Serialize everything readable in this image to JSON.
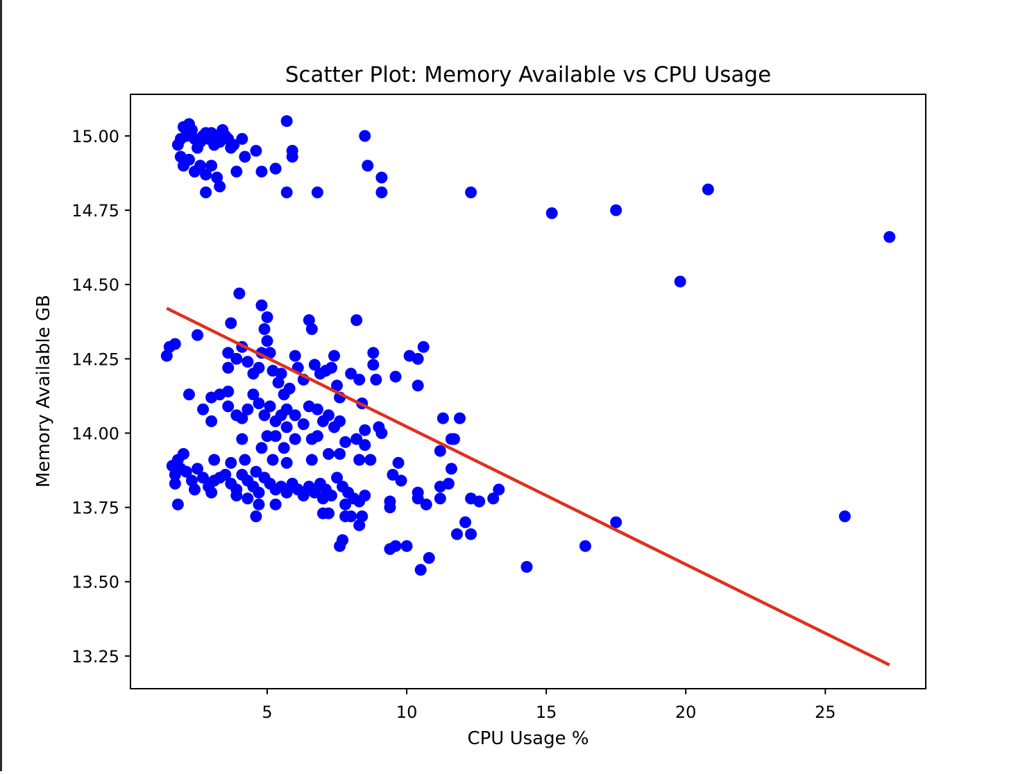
{
  "colors": {
    "points": "#0000ff",
    "trend": "#e0301e",
    "axes": "#000000",
    "background": "#ffffff"
  },
  "chart_data": {
    "type": "scatter",
    "title": "Scatter Plot: Memory Available vs CPU Usage",
    "xlabel": "CPU Usage %",
    "ylabel": "Memory Available GB",
    "xlim": [
      0.1,
      28.6
    ],
    "ylim": [
      13.14,
      15.14
    ],
    "xticks": [
      5,
      10,
      15,
      20,
      25
    ],
    "xtick_labels": [
      "5",
      "10",
      "15",
      "20",
      "25"
    ],
    "yticks": [
      13.25,
      13.5,
      13.75,
      14.0,
      14.25,
      14.5,
      14.75,
      15.0
    ],
    "ytick_labels": [
      "13.25",
      "13.50",
      "13.75",
      "14.00",
      "14.25",
      "14.50",
      "14.75",
      "15.00"
    ],
    "grid": false,
    "legend": "none",
    "trend_line": {
      "x": [
        1.4,
        27.3
      ],
      "y": [
        14.42,
        13.22
      ]
    },
    "points": [
      [
        1.8,
        14.97
      ],
      [
        1.9,
        14.99
      ],
      [
        2.0,
        15.03
      ],
      [
        2.1,
        15.0
      ],
      [
        2.2,
        15.04
      ],
      [
        2.3,
        15.02
      ],
      [
        2.4,
        14.99
      ],
      [
        2.5,
        14.96
      ],
      [
        2.6,
        14.98
      ],
      [
        2.7,
        15.0
      ],
      [
        2.8,
        15.01
      ],
      [
        2.9,
        14.99
      ],
      [
        3.0,
        15.01
      ],
      [
        3.1,
        14.97
      ],
      [
        3.2,
        15.0
      ],
      [
        3.3,
        14.98
      ],
      [
        3.4,
        15.02
      ],
      [
        3.5,
        15.0
      ],
      [
        3.6,
        14.99
      ],
      [
        3.7,
        14.96
      ],
      [
        3.8,
        14.97
      ],
      [
        1.9,
        14.93
      ],
      [
        2.0,
        14.9
      ],
      [
        2.2,
        14.92
      ],
      [
        2.4,
        14.88
      ],
      [
        2.6,
        14.9
      ],
      [
        2.8,
        14.87
      ],
      [
        3.0,
        14.9
      ],
      [
        3.2,
        14.86
      ],
      [
        3.3,
        14.83
      ],
      [
        2.8,
        14.81
      ],
      [
        3.9,
        14.88
      ],
      [
        4.1,
        14.99
      ],
      [
        4.2,
        14.93
      ],
      [
        4.6,
        14.95
      ],
      [
        4.8,
        14.88
      ],
      [
        5.3,
        14.89
      ],
      [
        5.7,
        15.05
      ],
      [
        5.9,
        14.95
      ],
      [
        5.9,
        14.93
      ],
      [
        5.7,
        14.81
      ],
      [
        6.8,
        14.81
      ],
      [
        8.5,
        15.0
      ],
      [
        8.6,
        14.9
      ],
      [
        9.1,
        14.86
      ],
      [
        9.1,
        14.81
      ],
      [
        12.3,
        14.81
      ],
      [
        15.2,
        14.74
      ],
      [
        17.5,
        14.75
      ],
      [
        20.8,
        14.82
      ],
      [
        19.8,
        14.51
      ],
      [
        27.3,
        14.66
      ],
      [
        1.4,
        14.26
      ],
      [
        1.5,
        14.29
      ],
      [
        1.7,
        14.3
      ],
      [
        2.5,
        14.33
      ],
      [
        2.2,
        14.13
      ],
      [
        2.7,
        14.08
      ],
      [
        3.0,
        14.12
      ],
      [
        3.3,
        14.13
      ],
      [
        3.6,
        14.14
      ],
      [
        3.0,
        14.04
      ],
      [
        4.0,
        14.47
      ],
      [
        3.7,
        14.37
      ],
      [
        3.6,
        14.27
      ],
      [
        3.6,
        14.22
      ],
      [
        3.9,
        14.25
      ],
      [
        4.1,
        14.29
      ],
      [
        4.3,
        14.24
      ],
      [
        4.5,
        14.2
      ],
      [
        4.7,
        14.22
      ],
      [
        4.8,
        14.27
      ],
      [
        4.8,
        14.43
      ],
      [
        4.9,
        14.35
      ],
      [
        5.0,
        14.39
      ],
      [
        5.0,
        14.31
      ],
      [
        5.1,
        14.27
      ],
      [
        5.2,
        14.21
      ],
      [
        5.4,
        14.17
      ],
      [
        5.5,
        14.2
      ],
      [
        5.6,
        14.13
      ],
      [
        5.7,
        14.08
      ],
      [
        5.8,
        14.15
      ],
      [
        6.0,
        14.26
      ],
      [
        6.1,
        14.22
      ],
      [
        6.3,
        14.18
      ],
      [
        6.5,
        14.38
      ],
      [
        6.6,
        14.35
      ],
      [
        6.7,
        14.23
      ],
      [
        6.9,
        14.2
      ],
      [
        7.1,
        14.21
      ],
      [
        7.3,
        14.22
      ],
      [
        7.4,
        14.26
      ],
      [
        7.5,
        14.16
      ],
      [
        7.6,
        14.12
      ],
      [
        8.0,
        14.2
      ],
      [
        8.2,
        14.38
      ],
      [
        8.3,
        14.18
      ],
      [
        8.4,
        14.1
      ],
      [
        8.8,
        14.27
      ],
      [
        8.8,
        14.23
      ],
      [
        8.9,
        14.18
      ],
      [
        9.6,
        14.19
      ],
      [
        10.1,
        14.26
      ],
      [
        10.4,
        14.25
      ],
      [
        10.6,
        14.29
      ],
      [
        10.4,
        14.16
      ],
      [
        3.6,
        14.09
      ],
      [
        3.9,
        14.06
      ],
      [
        4.1,
        14.05
      ],
      [
        4.3,
        14.08
      ],
      [
        4.5,
        14.13
      ],
      [
        4.7,
        14.1
      ],
      [
        4.9,
        14.06
      ],
      [
        5.1,
        14.09
      ],
      [
        5.3,
        14.04
      ],
      [
        5.5,
        14.06
      ],
      [
        5.7,
        14.02
      ],
      [
        6.0,
        14.06
      ],
      [
        6.3,
        14.03
      ],
      [
        6.5,
        14.09
      ],
      [
        6.8,
        14.08
      ],
      [
        7.0,
        14.04
      ],
      [
        7.2,
        14.06
      ],
      [
        7.4,
        14.02
      ],
      [
        7.6,
        14.04
      ],
      [
        7.8,
        13.97
      ],
      [
        8.2,
        13.98
      ],
      [
        8.5,
        14.01
      ],
      [
        8.5,
        13.96
      ],
      [
        9.0,
        14.02
      ],
      [
        9.1,
        14.0
      ],
      [
        11.3,
        14.05
      ],
      [
        11.9,
        14.05
      ],
      [
        11.6,
        13.98
      ],
      [
        11.7,
        13.98
      ],
      [
        4.1,
        13.98
      ],
      [
        5.0,
        13.99
      ],
      [
        5.3,
        13.99
      ],
      [
        6.0,
        13.98
      ],
      [
        6.6,
        13.98
      ],
      [
        6.8,
        13.99
      ],
      [
        4.8,
        13.95
      ],
      [
        5.6,
        13.95
      ],
      [
        1.6,
        13.89
      ],
      [
        1.7,
        13.86
      ],
      [
        1.8,
        13.91
      ],
      [
        1.9,
        13.88
      ],
      [
        2.0,
        13.93
      ],
      [
        2.1,
        13.87
      ],
      [
        2.3,
        13.84
      ],
      [
        2.5,
        13.88
      ],
      [
        2.7,
        13.85
      ],
      [
        2.9,
        13.82
      ],
      [
        3.1,
        13.84
      ],
      [
        3.3,
        13.85
      ],
      [
        3.5,
        13.86
      ],
      [
        3.7,
        13.83
      ],
      [
        3.9,
        13.81
      ],
      [
        4.1,
        13.86
      ],
      [
        4.3,
        13.84
      ],
      [
        4.5,
        13.82
      ],
      [
        4.7,
        13.8
      ],
      [
        4.9,
        13.85
      ],
      [
        5.1,
        13.83
      ],
      [
        5.3,
        13.81
      ],
      [
        5.5,
        13.82
      ],
      [
        5.7,
        13.8
      ],
      [
        5.9,
        13.83
      ],
      [
        6.1,
        13.81
      ],
      [
        6.3,
        13.79
      ],
      [
        6.5,
        13.82
      ],
      [
        6.7,
        13.8
      ],
      [
        6.9,
        13.83
      ],
      [
        7.1,
        13.81
      ],
      [
        7.3,
        13.79
      ],
      [
        7.5,
        13.85
      ],
      [
        7.7,
        13.82
      ],
      [
        7.9,
        13.8
      ],
      [
        8.1,
        13.78
      ],
      [
        8.3,
        13.77
      ],
      [
        8.5,
        13.79
      ],
      [
        1.7,
        13.83
      ],
      [
        2.4,
        13.81
      ],
      [
        3.0,
        13.8
      ],
      [
        3.1,
        13.91
      ],
      [
        3.7,
        13.9
      ],
      [
        4.2,
        13.91
      ],
      [
        4.6,
        13.87
      ],
      [
        5.2,
        13.91
      ],
      [
        5.7,
        13.9
      ],
      [
        6.6,
        13.91
      ],
      [
        7.2,
        13.93
      ],
      [
        7.6,
        13.93
      ],
      [
        8.3,
        13.91
      ],
      [
        8.7,
        13.91
      ],
      [
        1.8,
        13.76
      ],
      [
        3.9,
        13.79
      ],
      [
        4.3,
        13.78
      ],
      [
        4.6,
        13.72
      ],
      [
        4.7,
        13.76
      ],
      [
        5.3,
        13.76
      ],
      [
        7.0,
        13.78
      ],
      [
        7.0,
        13.73
      ],
      [
        7.2,
        13.73
      ],
      [
        7.8,
        13.76
      ],
      [
        7.8,
        13.72
      ],
      [
        8.0,
        13.72
      ],
      [
        8.3,
        13.69
      ],
      [
        8.4,
        13.72
      ],
      [
        9.4,
        13.77
      ],
      [
        9.4,
        13.75
      ],
      [
        7.6,
        13.62
      ],
      [
        7.7,
        13.64
      ],
      [
        9.4,
        13.61
      ],
      [
        9.6,
        13.62
      ],
      [
        10.0,
        13.62
      ],
      [
        10.5,
        13.54
      ],
      [
        10.8,
        13.58
      ],
      [
        9.5,
        13.86
      ],
      [
        9.8,
        13.84
      ],
      [
        9.7,
        13.9
      ],
      [
        10.4,
        13.8
      ],
      [
        10.4,
        13.78
      ],
      [
        10.7,
        13.76
      ],
      [
        11.2,
        13.94
      ],
      [
        11.2,
        13.82
      ],
      [
        11.2,
        13.78
      ],
      [
        11.5,
        13.83
      ],
      [
        11.6,
        13.88
      ],
      [
        11.8,
        13.66
      ],
      [
        12.1,
        13.7
      ],
      [
        12.3,
        13.78
      ],
      [
        12.3,
        13.66
      ],
      [
        12.6,
        13.77
      ],
      [
        13.1,
        13.78
      ],
      [
        13.3,
        13.81
      ],
      [
        14.3,
        13.55
      ],
      [
        16.4,
        13.62
      ],
      [
        17.5,
        13.7
      ],
      [
        25.7,
        13.72
      ]
    ]
  }
}
